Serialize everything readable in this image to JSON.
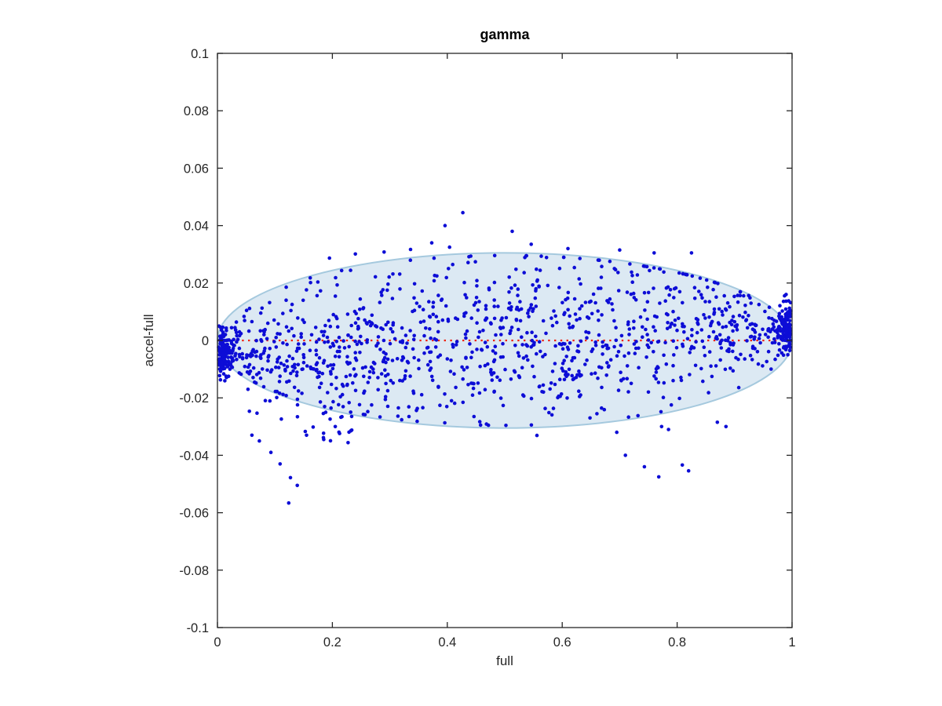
{
  "figure": {
    "background_color": "#ffffff",
    "axis_color": "#262626",
    "tick_label_font_px": 16.5
  },
  "chart_data": {
    "type": "scatter",
    "title": "gamma",
    "xlabel": "full",
    "ylabel": "accel-full",
    "xlim": [
      0,
      1
    ],
    "ylim": [
      -0.1,
      0.1
    ],
    "grid": false,
    "legend": null,
    "x_ticks": [
      {
        "v": 0,
        "label": "0"
      },
      {
        "v": 0.2,
        "label": "0.2"
      },
      {
        "v": 0.4,
        "label": "0.4"
      },
      {
        "v": 0.6,
        "label": "0.6"
      },
      {
        "v": 0.8,
        "label": "0.8"
      },
      {
        "v": 1,
        "label": "1"
      }
    ],
    "y_ticks": [
      {
        "v": 0.1,
        "label": "0.1"
      },
      {
        "v": 0.08,
        "label": "0.08"
      },
      {
        "v": 0.06,
        "label": "0.06"
      },
      {
        "v": 0.04,
        "label": "0.04"
      },
      {
        "v": 0.02,
        "label": "0.02"
      },
      {
        "v": 0,
        "label": "0"
      },
      {
        "v": -0.02,
        "label": "-0.02"
      },
      {
        "v": -0.04,
        "label": "-0.04"
      },
      {
        "v": -0.06,
        "label": "-0.06"
      },
      {
        "v": -0.08,
        "label": "-0.08"
      },
      {
        "v": -0.1,
        "label": "-0.1"
      }
    ],
    "marker": {
      "shape": "dot",
      "color": "#0d0dd6",
      "radius_px": 2.3
    },
    "ellipse": {
      "cx": 0.5,
      "cy": 0,
      "rx": 0.5,
      "ry": 0.0305,
      "fill": "#dce9f3",
      "stroke": "#a5c9de",
      "stroke_width": 2
    },
    "reference_line": {
      "y": 0,
      "x_start": 0,
      "x_end": 1,
      "color": "#ee2211",
      "style": "dotted",
      "dash": [
        2.4,
        5.4
      ],
      "width": 2.3
    },
    "point_generator": {
      "seed": 42,
      "main_cloud": {
        "count": 1150,
        "x_min": 0.004,
        "x_max": 0.996,
        "envelope_ry": 0.0305,
        "skew": 0.3,
        "sigma": 0.5,
        "clip": 0.97
      },
      "left_tip_cluster": {
        "count": 115,
        "x_edge": 0.002,
        "x_scale": 0.013,
        "x_max": 0.06,
        "y_mean": -0.004,
        "y_sigma": 0.0042,
        "y_min": -0.016,
        "y_max": 0.005
      },
      "right_tip_cluster": {
        "count": 115,
        "x_edge": 0.998,
        "x_scale": 0.013,
        "x_min": 0.94,
        "y_mean": 0.0045,
        "y_sigma": 0.0042,
        "y_min": -0.005,
        "y_max": 0.016
      },
      "below_edge_spray": {
        "count": 26,
        "x_min": 0.04,
        "x_max": 0.24,
        "depth_min": 0.0005,
        "depth_max": 0.011
      }
    },
    "outlier_points": [
      [
        0.427,
        0.0445
      ],
      [
        0.396,
        0.04
      ],
      [
        0.513,
        0.038
      ],
      [
        0.546,
        0.0335
      ],
      [
        0.373,
        0.034
      ],
      [
        0.404,
        0.0325
      ],
      [
        0.336,
        0.0317
      ],
      [
        0.24,
        0.0301
      ],
      [
        0.195,
        0.0287
      ],
      [
        0.29,
        0.0308
      ],
      [
        0.61,
        0.032
      ],
      [
        0.7,
        0.0315
      ],
      [
        0.76,
        0.0305
      ],
      [
        0.825,
        0.0305
      ],
      [
        0.109,
        -0.043
      ],
      [
        0.127,
        -0.0478
      ],
      [
        0.139,
        -0.0505
      ],
      [
        0.124,
        -0.0566
      ],
      [
        0.093,
        -0.039
      ],
      [
        0.073,
        -0.035
      ],
      [
        0.06,
        -0.033
      ],
      [
        0.155,
        -0.033
      ],
      [
        0.185,
        -0.0345
      ],
      [
        0.205,
        -0.03
      ],
      [
        0.556,
        -0.0331
      ],
      [
        0.695,
        -0.032
      ],
      [
        0.71,
        -0.04
      ],
      [
        0.743,
        -0.044
      ],
      [
        0.768,
        -0.0475
      ],
      [
        0.809,
        -0.0434
      ],
      [
        0.82,
        -0.0454
      ],
      [
        0.773,
        -0.03
      ],
      [
        0.785,
        -0.031
      ],
      [
        0.87,
        -0.0285
      ],
      [
        0.885,
        -0.03
      ]
    ]
  }
}
